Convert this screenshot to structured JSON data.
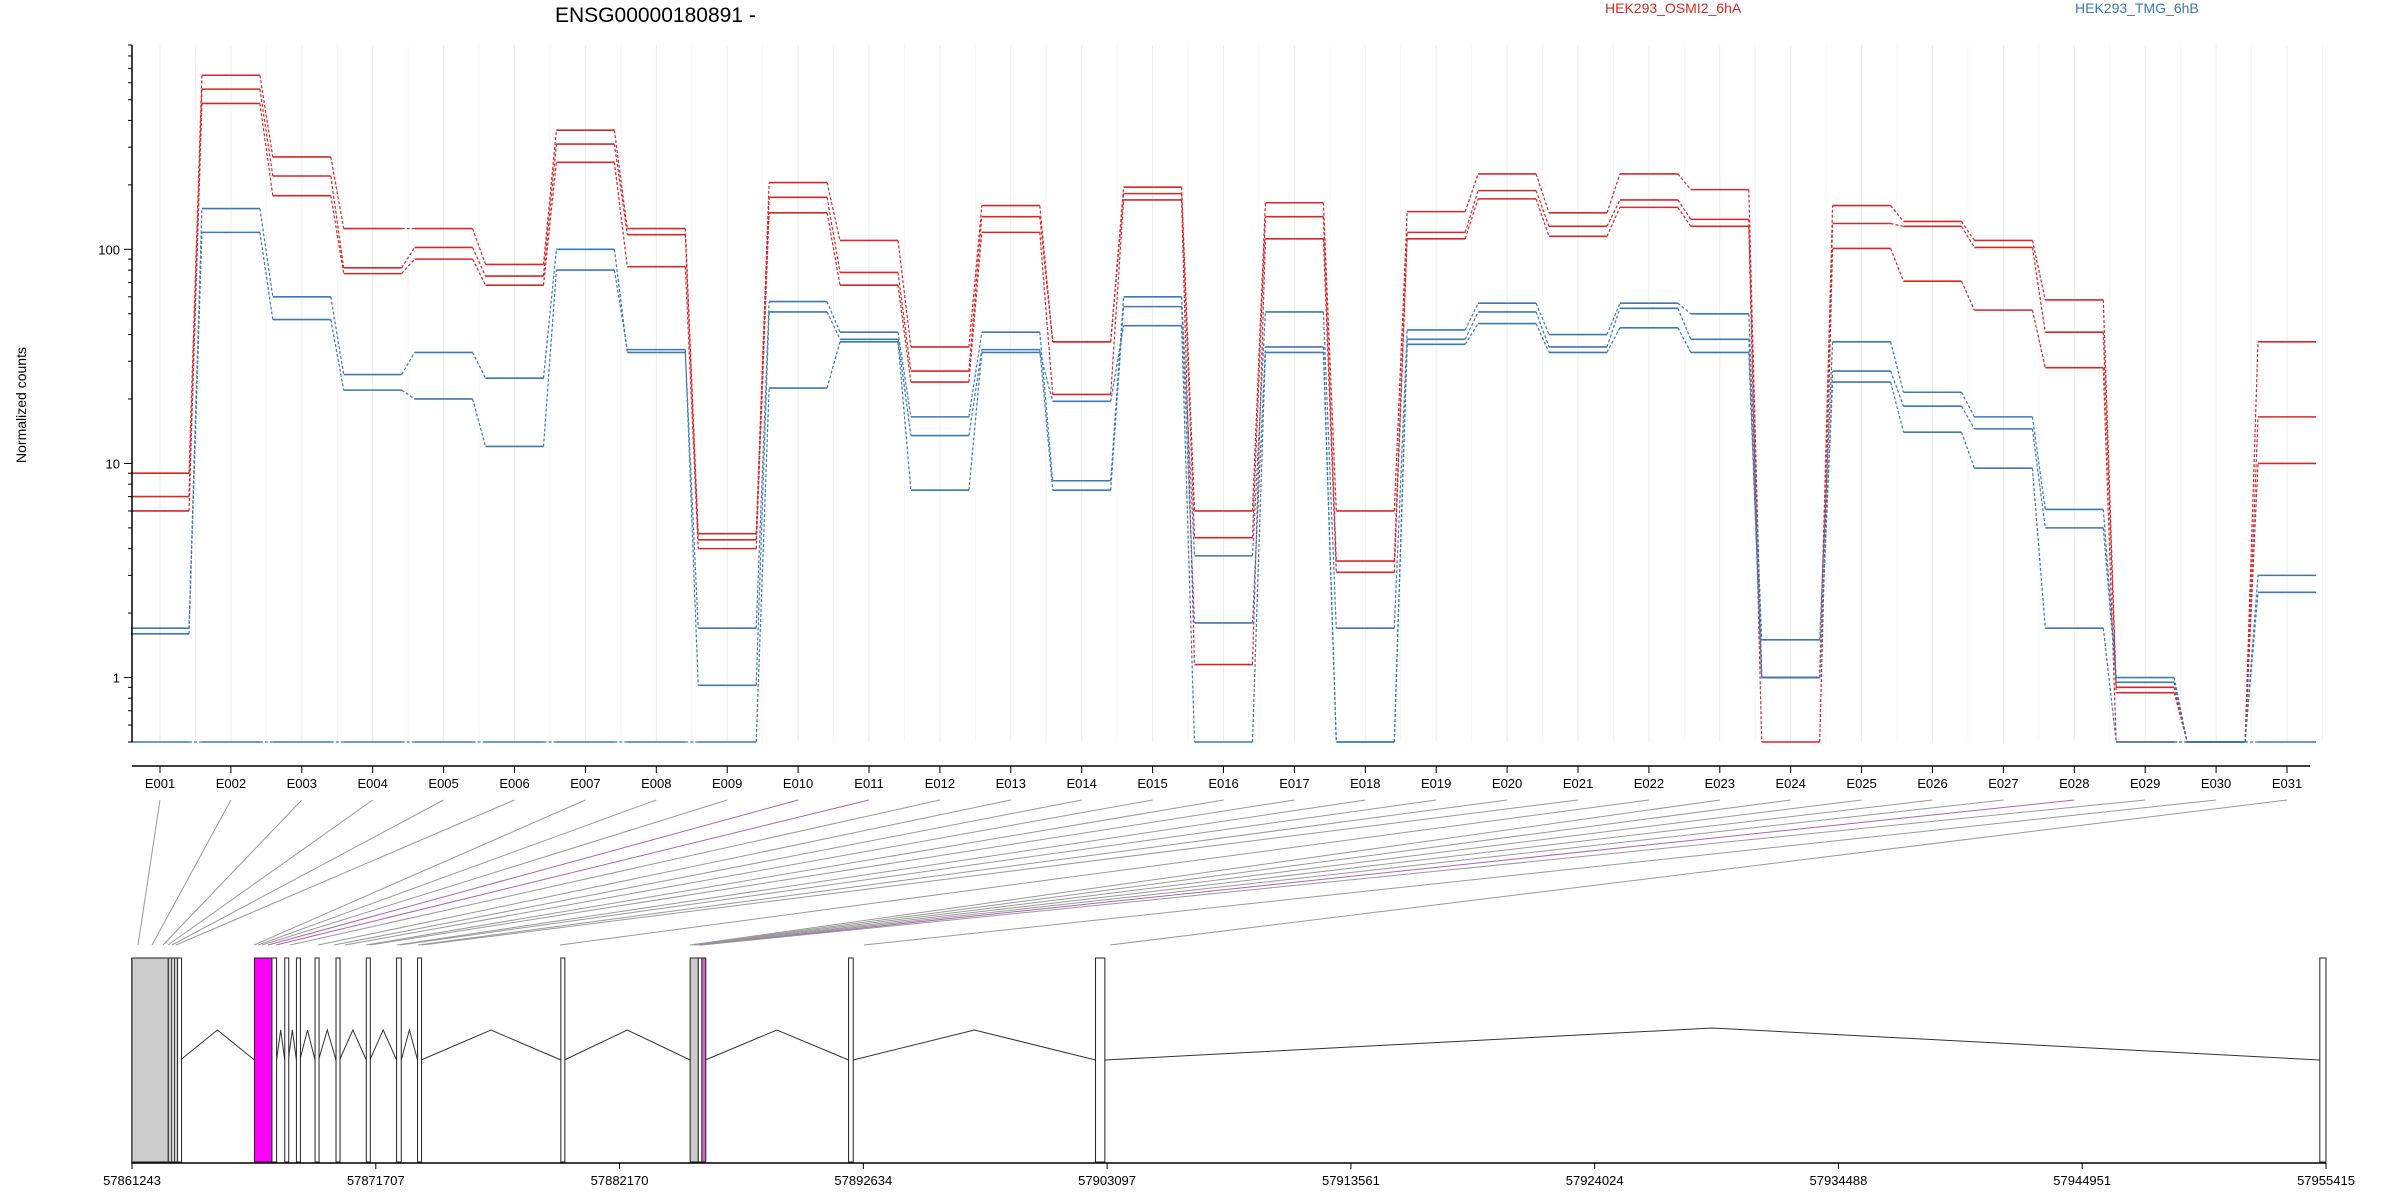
{
  "chart_data": {
    "type": "line",
    "title": "ENSG00000180891 -",
    "ylabel": "Normalized counts",
    "yscale": "log",
    "yticks": [
      1,
      10,
      100
    ],
    "ytick_labels": [
      "1",
      "10",
      "100"
    ],
    "ylim": [
      0.5,
      900
    ],
    "grid": "vertical-x",
    "legend": [
      "HEK293_OSMI2_6hA",
      "HEK293_TMG_6hB"
    ],
    "legend_placement": "top-right",
    "colors": {
      "HEK293_OSMI2_6hA": "#d62728",
      "HEK293_TMG_6hB": "#3b78b4"
    },
    "categories": [
      "E001",
      "E002",
      "E003",
      "E004",
      "E005",
      "E006",
      "E007",
      "E008",
      "E009",
      "E010",
      "E011",
      "E012",
      "E013",
      "E014",
      "E015",
      "E016",
      "E017",
      "E018",
      "E019",
      "E020",
      "E021",
      "E022",
      "E023",
      "E024",
      "E025",
      "E026",
      "E027",
      "E028",
      "E029",
      "E030",
      "E031"
    ],
    "series": [
      {
        "group": "HEK293_OSMI2_6hA",
        "values": [
          9,
          650,
          270,
          125,
          125,
          85,
          360,
          125,
          4.7,
          205,
          110,
          35,
          160,
          37,
          195,
          6,
          165,
          6,
          150,
          225,
          148,
          225,
          190,
          1.0,
          160,
          135,
          110,
          58,
          0.9,
          0.5,
          37
        ]
      },
      {
        "group": "HEK293_OSMI2_6hA",
        "values": [
          7,
          560,
          220,
          82,
          102,
          75,
          310,
          117,
          4.4,
          175,
          78,
          27,
          142,
          37,
          182,
          4.5,
          142,
          3.5,
          120,
          188,
          128,
          170,
          138,
          1.0,
          132,
          128,
          102,
          41,
          0.85,
          0.5,
          16.5
        ]
      },
      {
        "group": "HEK293_OSMI2_6hA",
        "values": [
          6,
          480,
          178,
          77,
          90,
          68,
          255,
          83,
          4.0,
          148,
          68,
          24,
          120,
          21,
          170,
          1.15,
          112,
          3.1,
          112,
          172,
          115,
          157,
          128,
          0.5,
          101,
          71,
          52,
          28,
          0.5,
          0.5,
          10
        ]
      },
      {
        "group": "HEK293_TMG_6hB",
        "values": [
          1.7,
          155,
          60,
          26,
          33,
          25,
          100,
          33,
          1.7,
          57,
          41,
          16.5,
          41,
          8.3,
          60,
          3.7,
          51,
          1.7,
          42,
          56,
          40,
          56,
          50,
          1.5,
          37,
          21.5,
          16.5,
          6.1,
          1.0,
          0.5,
          3.0
        ]
      },
      {
        "group": "HEK293_TMG_6hB",
        "values": [
          1.6,
          120,
          47,
          22,
          20,
          12,
          80,
          34,
          0.92,
          51,
          38,
          13.5,
          34,
          7.5,
          54,
          1.8,
          35,
          0.5,
          38,
          51,
          35,
          53,
          38,
          1.0,
          27,
          18.5,
          14.5,
          5.0,
          0.95,
          0.5,
          2.5
        ]
      },
      {
        "group": "HEK293_TMG_6hB",
        "values": [
          0.5,
          0.5,
          0.5,
          0.5,
          0.5,
          0.5,
          0.5,
          0.5,
          0.5,
          22.5,
          37,
          7.5,
          33,
          19.5,
          44,
          0.5,
          33,
          0.5,
          36,
          45,
          33,
          43,
          33,
          1.0,
          24,
          14,
          9.5,
          1.7,
          0.5,
          0.5,
          0.5
        ]
      }
    ],
    "genome": {
      "ticks": [
        57861243,
        57871707,
        57882170,
        57892634,
        57903097,
        57913561,
        57924024,
        57934488,
        57944951,
        57955415
      ],
      "range": [
        57861243,
        57955415
      ],
      "exons": [
        {
          "start": 57861243,
          "end": 57862800,
          "fill": "#cccccc"
        },
        {
          "start": 57862800,
          "end": 57862950,
          "fill": "#cccccc"
        },
        {
          "start": 57862950,
          "end": 57863060,
          "fill": "#ffffff"
        },
        {
          "start": 57863060,
          "end": 57863200,
          "fill": "#cccccc"
        },
        {
          "start": 57863200,
          "end": 57863320,
          "fill": "#ffffff"
        },
        {
          "start": 57866500,
          "end": 57867250,
          "fill": "#ff00ff"
        },
        {
          "start": 57867250,
          "end": 57867450,
          "fill": "#ffffff"
        },
        {
          "start": 57867800,
          "end": 57867950,
          "fill": "#ffffff"
        },
        {
          "start": 57868300,
          "end": 57868450,
          "fill": "#ffffff"
        },
        {
          "start": 57869100,
          "end": 57869250,
          "fill": "#ffffff"
        },
        {
          "start": 57870000,
          "end": 57870150,
          "fill": "#ffffff"
        },
        {
          "start": 57871300,
          "end": 57871450,
          "fill": "#ffffff"
        },
        {
          "start": 57872600,
          "end": 57872800,
          "fill": "#ffffff"
        },
        {
          "start": 57873500,
          "end": 57873650,
          "fill": "#ffffff"
        },
        {
          "start": 57879650,
          "end": 57879800,
          "fill": "#ffffff"
        },
        {
          "start": 57885200,
          "end": 57885550,
          "fill": "#cccccc"
        },
        {
          "start": 57885550,
          "end": 57885700,
          "fill": "#ffffff"
        },
        {
          "start": 57885700,
          "end": 57885850,
          "fill": "#cc66cc"
        },
        {
          "start": 57892000,
          "end": 57892200,
          "fill": "#ffffff"
        },
        {
          "start": 57902600,
          "end": 57903000,
          "fill": "#ffffff"
        },
        {
          "start": 57955150,
          "end": 57955415,
          "fill": "#ffffff"
        }
      ]
    }
  }
}
